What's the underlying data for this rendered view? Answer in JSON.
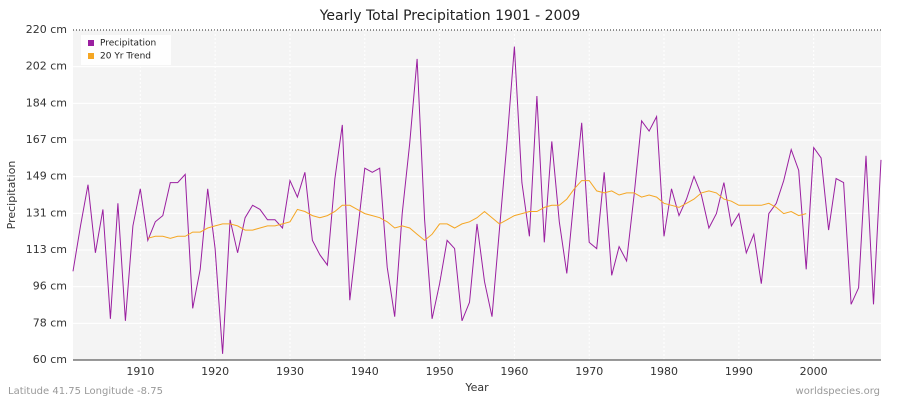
{
  "chart_data": {
    "type": "line",
    "title": "Yearly Total Precipitation 1901 - 2009",
    "x_label": "Year",
    "y_label": "Precipitation",
    "footer_left": "Latitude 41.75 Longitude -8.75",
    "footer_right": "worldspecies.org",
    "x": [
      1901,
      1902,
      1903,
      1904,
      1905,
      1906,
      1907,
      1908,
      1909,
      1910,
      1911,
      1912,
      1913,
      1914,
      1915,
      1916,
      1917,
      1918,
      1919,
      1920,
      1921,
      1922,
      1923,
      1924,
      1925,
      1926,
      1927,
      1928,
      1929,
      1930,
      1931,
      1932,
      1933,
      1934,
      1935,
      1936,
      1937,
      1938,
      1939,
      1940,
      1941,
      1942,
      1943,
      1944,
      1945,
      1946,
      1947,
      1948,
      1949,
      1950,
      1951,
      1952,
      1953,
      1954,
      1955,
      1956,
      1957,
      1958,
      1959,
      1960,
      1961,
      1962,
      1963,
      1964,
      1965,
      1966,
      1967,
      1968,
      1969,
      1970,
      1971,
      1972,
      1973,
      1974,
      1975,
      1976,
      1977,
      1978,
      1979,
      1980,
      1981,
      1982,
      1983,
      1984,
      1985,
      1986,
      1987,
      1988,
      1989,
      1990,
      1991,
      1992,
      1993,
      1994,
      1995,
      1996,
      1997,
      1998,
      1999,
      2000,
      2001,
      2002,
      2003,
      2004,
      2005,
      2006,
      2007,
      2008,
      2009
    ],
    "series": [
      {
        "name": "Precipitation",
        "color": "#9a1fa0",
        "values": [
          103,
          125,
          145,
          112,
          133,
          80,
          136,
          79,
          125,
          143,
          118,
          127,
          130,
          146,
          146,
          150,
          85,
          104,
          143,
          114,
          63,
          128,
          112,
          129,
          135,
          133,
          128,
          128,
          124,
          147,
          139,
          151,
          118,
          111,
          106,
          148,
          174,
          89,
          121,
          153,
          151,
          153,
          105,
          81,
          131,
          165,
          206,
          128,
          80,
          97,
          118,
          114,
          79,
          88,
          126,
          98,
          81,
          123,
          165,
          212,
          146,
          120,
          188,
          117,
          166,
          127,
          102,
          140,
          175,
          117,
          114,
          151,
          101,
          115,
          108,
          140,
          176,
          171,
          178,
          120,
          143,
          130,
          138,
          149,
          140,
          124,
          131,
          146,
          125,
          131,
          112,
          121,
          97,
          131,
          136,
          147,
          162,
          152,
          104,
          163,
          158,
          123,
          148,
          146,
          87,
          95,
          159,
          87,
          157
        ]
      },
      {
        "name": "20 Yr Trend",
        "color": "#f5a623",
        "values": [
          null,
          null,
          null,
          null,
          null,
          null,
          null,
          null,
          null,
          null,
          119,
          120,
          120,
          119,
          120,
          120,
          122,
          122,
          124,
          125,
          126,
          126,
          125,
          123,
          123,
          124,
          125,
          125,
          126,
          127,
          133,
          132,
          130,
          129,
          130,
          132,
          135,
          135,
          133,
          131,
          130,
          129,
          127,
          124,
          125,
          124,
          121,
          118,
          121,
          126,
          126,
          124,
          126,
          127,
          129,
          132,
          129,
          126,
          128,
          130,
          131,
          132,
          132,
          134,
          135,
          135,
          138,
          143,
          147,
          147,
          142,
          141,
          142,
          140,
          141,
          141,
          139,
          140,
          139,
          136,
          135,
          134,
          136,
          138,
          141,
          142,
          141,
          138,
          137,
          135,
          135,
          135,
          135,
          136,
          134,
          131,
          132,
          130,
          131,
          null,
          null,
          null,
          null,
          null,
          null,
          null,
          null,
          null,
          null
        ]
      }
    ],
    "xlim": [
      1901,
      2009
    ],
    "xticks": [
      1910,
      1920,
      1930,
      1940,
      1950,
      1960,
      1970,
      1980,
      1990,
      2000
    ],
    "ylim": [
      60,
      220
    ],
    "yticks": [
      {
        "value": 60,
        "label": "60 cm"
      },
      {
        "value": 77.78,
        "label": "78 cm"
      },
      {
        "value": 95.56,
        "label": "96 cm"
      },
      {
        "value": 113.33,
        "label": "113 cm"
      },
      {
        "value": 131.11,
        "label": "131 cm"
      },
      {
        "value": 148.89,
        "label": "149 cm"
      },
      {
        "value": 166.67,
        "label": "167 cm"
      },
      {
        "value": 184.44,
        "label": "184 cm"
      },
      {
        "value": 202.22,
        "label": "202 cm"
      },
      {
        "value": 220,
        "label": "220 cm"
      }
    ],
    "grid": true,
    "legend": "top-left"
  }
}
